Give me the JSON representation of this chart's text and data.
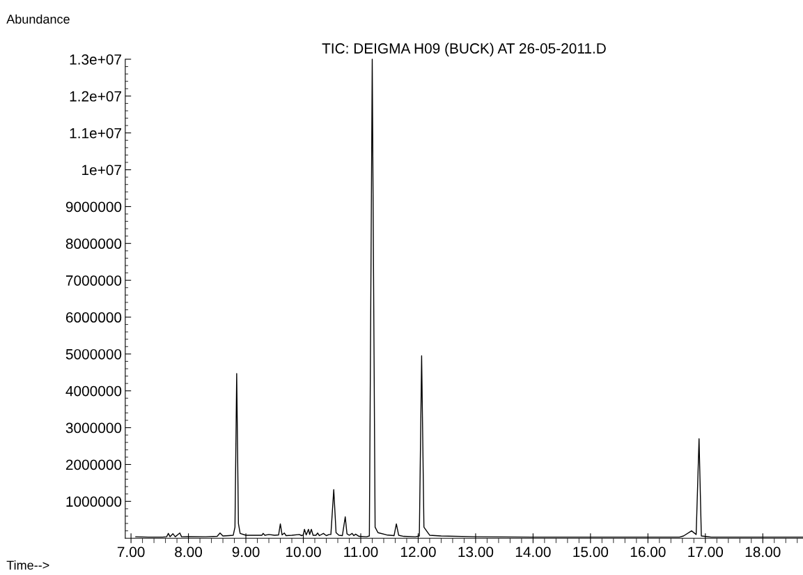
{
  "chart_data": {
    "type": "line",
    "title": "TIC: DEIGMA H09 (BUCK) AT 26-05-2011.D",
    "xlabel": "Time-->",
    "ylabel": "Abundance",
    "grid": false,
    "marker": "none",
    "line_style": "solid",
    "xlim": [
      6.9,
      18.7
    ],
    "ylim": [
      0,
      13000000
    ],
    "xticks": [
      {
        "value": 7,
        "label": "7.00"
      },
      {
        "value": 7.2,
        "label": null
      },
      {
        "value": 7.4,
        "label": null
      },
      {
        "value": 7.6,
        "label": null
      },
      {
        "value": 7.8,
        "label": null
      },
      {
        "value": 8,
        "label": "8.00"
      },
      {
        "value": 8.2,
        "label": null
      },
      {
        "value": 8.4,
        "label": null
      },
      {
        "value": 8.6,
        "label": null
      },
      {
        "value": 8.8,
        "label": null
      },
      {
        "value": 9,
        "label": "9.00"
      },
      {
        "value": 9.2,
        "label": null
      },
      {
        "value": 9.4,
        "label": null
      },
      {
        "value": 9.6,
        "label": null
      },
      {
        "value": 9.8,
        "label": null
      },
      {
        "value": 10,
        "label": "10.00"
      },
      {
        "value": 10.2,
        "label": null
      },
      {
        "value": 10.4,
        "label": null
      },
      {
        "value": 10.6,
        "label": null
      },
      {
        "value": 10.8,
        "label": null
      },
      {
        "value": 11,
        "label": "11.00"
      },
      {
        "value": 11.2,
        "label": null
      },
      {
        "value": 11.4,
        "label": null
      },
      {
        "value": 11.6,
        "label": null
      },
      {
        "value": 11.8,
        "label": null
      },
      {
        "value": 12,
        "label": "12.00"
      },
      {
        "value": 12.2,
        "label": null
      },
      {
        "value": 12.4,
        "label": null
      },
      {
        "value": 12.6,
        "label": null
      },
      {
        "value": 12.8,
        "label": null
      },
      {
        "value": 13,
        "label": "13.00"
      },
      {
        "value": 13.2,
        "label": null
      },
      {
        "value": 13.4,
        "label": null
      },
      {
        "value": 13.6,
        "label": null
      },
      {
        "value": 13.8,
        "label": null
      },
      {
        "value": 14,
        "label": "14.00"
      },
      {
        "value": 14.2,
        "label": null
      },
      {
        "value": 14.4,
        "label": null
      },
      {
        "value": 14.6,
        "label": null
      },
      {
        "value": 14.8,
        "label": null
      },
      {
        "value": 15,
        "label": "15.00"
      },
      {
        "value": 15.2,
        "label": null
      },
      {
        "value": 15.4,
        "label": null
      },
      {
        "value": 15.6,
        "label": null
      },
      {
        "value": 15.8,
        "label": null
      },
      {
        "value": 16,
        "label": "16.00"
      },
      {
        "value": 16.2,
        "label": null
      },
      {
        "value": 16.4,
        "label": null
      },
      {
        "value": 16.6,
        "label": null
      },
      {
        "value": 16.8,
        "label": null
      },
      {
        "value": 17,
        "label": "17.00"
      },
      {
        "value": 17.2,
        "label": null
      },
      {
        "value": 17.4,
        "label": null
      },
      {
        "value": 17.6,
        "label": null
      },
      {
        "value": 17.8,
        "label": null
      },
      {
        "value": 18,
        "label": "18.00"
      },
      {
        "value": 18.2,
        "label": null
      },
      {
        "value": 18.4,
        "label": null
      },
      {
        "value": 18.6,
        "label": null
      }
    ],
    "yticks": [
      {
        "value": 200000,
        "label": null
      },
      {
        "value": 400000,
        "label": null
      },
      {
        "value": 600000,
        "label": null
      },
      {
        "value": 800000,
        "label": null
      },
      1000000,
      {
        "value": 1200000,
        "label": null
      },
      {
        "value": 1400000,
        "label": null
      },
      {
        "value": 1600000,
        "label": null
      },
      {
        "value": 1800000,
        "label": null
      },
      2000000,
      {
        "value": 2200000,
        "label": null
      },
      {
        "value": 2400000,
        "label": null
      },
      {
        "value": 2600000,
        "label": null
      },
      {
        "value": 2800000,
        "label": null
      },
      3000000,
      {
        "value": 3200000,
        "label": null
      },
      {
        "value": 3400000,
        "label": null
      },
      {
        "value": 3600000,
        "label": null
      },
      {
        "value": 3800000,
        "label": null
      },
      4000000,
      {
        "value": 4200000,
        "label": null
      },
      {
        "value": 4400000,
        "label": null
      },
      {
        "value": 4600000,
        "label": null
      },
      {
        "value": 4800000,
        "label": null
      },
      5000000,
      {
        "value": 5200000,
        "label": null
      },
      {
        "value": 5400000,
        "label": null
      },
      {
        "value": 5600000,
        "label": null
      },
      {
        "value": 5800000,
        "label": null
      },
      6000000,
      {
        "value": 6200000,
        "label": null
      },
      {
        "value": 6400000,
        "label": null
      },
      {
        "value": 6600000,
        "label": null
      },
      {
        "value": 6800000,
        "label": null
      },
      7000000,
      {
        "value": 7200000,
        "label": null
      },
      {
        "value": 7400000,
        "label": null
      },
      {
        "value": 7600000,
        "label": null
      },
      {
        "value": 7800000,
        "label": null
      },
      8000000,
      {
        "value": 8200000,
        "label": null
      },
      {
        "value": 8400000,
        "label": null
      },
      {
        "value": 8600000,
        "label": null
      },
      {
        "value": 8800000,
        "label": null
      },
      9000000,
      {
        "value": 9200000,
        "label": null
      },
      {
        "value": 9400000,
        "label": null
      },
      {
        "value": 9600000,
        "label": null
      },
      {
        "value": 9800000,
        "label": null
      },
      {
        "value": 10000000,
        "label": "1e+07"
      },
      {
        "value": 10200000,
        "label": null
      },
      {
        "value": 10400000,
        "label": null
      },
      {
        "value": 10600000,
        "label": null
      },
      {
        "value": 10800000,
        "label": null
      },
      {
        "value": 11000000,
        "label": "1.1e+07"
      },
      {
        "value": 11200000,
        "label": null
      },
      {
        "value": 11400000,
        "label": null
      },
      {
        "value": 11600000,
        "label": null
      },
      {
        "value": 11800000,
        "label": null
      },
      {
        "value": 12000000,
        "label": "1.2e+07"
      },
      {
        "value": 12200000,
        "label": null
      },
      {
        "value": 12400000,
        "label": null
      },
      {
        "value": 12600000,
        "label": null
      },
      {
        "value": 12800000,
        "label": null
      },
      {
        "value": 13000000,
        "label": "1.3e+07"
      }
    ],
    "x": [
      7.08,
      7.3,
      7.55,
      7.62,
      7.65,
      7.68,
      7.73,
      7.77,
      7.85,
      7.88,
      8.0,
      8.3,
      8.5,
      8.55,
      8.6,
      8.7,
      8.78,
      8.81,
      8.84,
      8.87,
      8.9,
      9.0,
      9.28,
      9.3,
      9.33,
      9.4,
      9.5,
      9.57,
      9.6,
      9.63,
      9.67,
      9.7,
      9.8,
      9.93,
      9.97,
      10.0,
      10.02,
      10.05,
      10.09,
      10.11,
      10.14,
      10.17,
      10.22,
      10.25,
      10.28,
      10.35,
      10.4,
      10.45,
      10.48,
      10.53,
      10.57,
      10.62,
      10.68,
      10.73,
      10.76,
      10.8,
      10.85,
      10.88,
      10.91,
      10.97,
      11.1,
      11.15,
      11.2,
      11.25,
      11.3,
      11.45,
      11.58,
      11.62,
      11.66,
      11.75,
      11.95,
      12.02,
      12.06,
      12.1,
      12.2,
      12.4,
      13.0,
      14.0,
      15.0,
      16.0,
      16.55,
      16.62,
      16.76,
      16.84,
      16.89,
      16.93,
      17.1,
      18.0,
      18.7
    ],
    "series": [
      {
        "color": "#000000",
        "values": [
          40000,
          30000,
          30000,
          40000,
          130000,
          40000,
          120000,
          40000,
          140000,
          40000,
          45000,
          40000,
          50000,
          140000,
          60000,
          70000,
          80000,
          300000,
          4470000,
          400000,
          130000,
          80000,
          80000,
          130000,
          80000,
          100000,
          80000,
          90000,
          390000,
          90000,
          140000,
          70000,
          80000,
          100000,
          70000,
          90000,
          240000,
          90000,
          240000,
          100000,
          240000,
          80000,
          80000,
          140000,
          70000,
          130000,
          70000,
          100000,
          100000,
          1320000,
          150000,
          80000,
          70000,
          580000,
          120000,
          80000,
          130000,
          70000,
          110000,
          50000,
          40000,
          60000,
          13000000,
          300000,
          150000,
          90000,
          70000,
          390000,
          80000,
          50000,
          40000,
          60000,
          4950000,
          300000,
          80000,
          60000,
          40000,
          30000,
          30000,
          30000,
          30000,
          60000,
          200000,
          100000,
          2700000,
          60000,
          30000,
          30000,
          30000
        ]
      }
    ]
  }
}
